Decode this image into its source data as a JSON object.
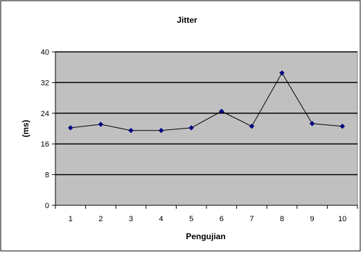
{
  "chart_data": {
    "type": "line",
    "title": "Jitter",
    "xlabel": "Pengujian",
    "ylabel": "(ms)",
    "categories": [
      "1",
      "2",
      "3",
      "4",
      "5",
      "6",
      "7",
      "8",
      "9",
      "10"
    ],
    "series": [
      {
        "name": "",
        "values": [
          20.2,
          21.1,
          19.5,
          19.5,
          20.2,
          24.5,
          20.6,
          34.5,
          21.3,
          20.6
        ]
      }
    ],
    "ylim": [
      0,
      40
    ],
    "yticks": [
      0,
      8,
      16,
      24,
      32,
      40
    ],
    "grid": true,
    "legend": "none",
    "colors": {
      "plot_background": "#c0c0c0",
      "gridline": "#000000",
      "line": "#000000",
      "marker": "#000080"
    }
  }
}
